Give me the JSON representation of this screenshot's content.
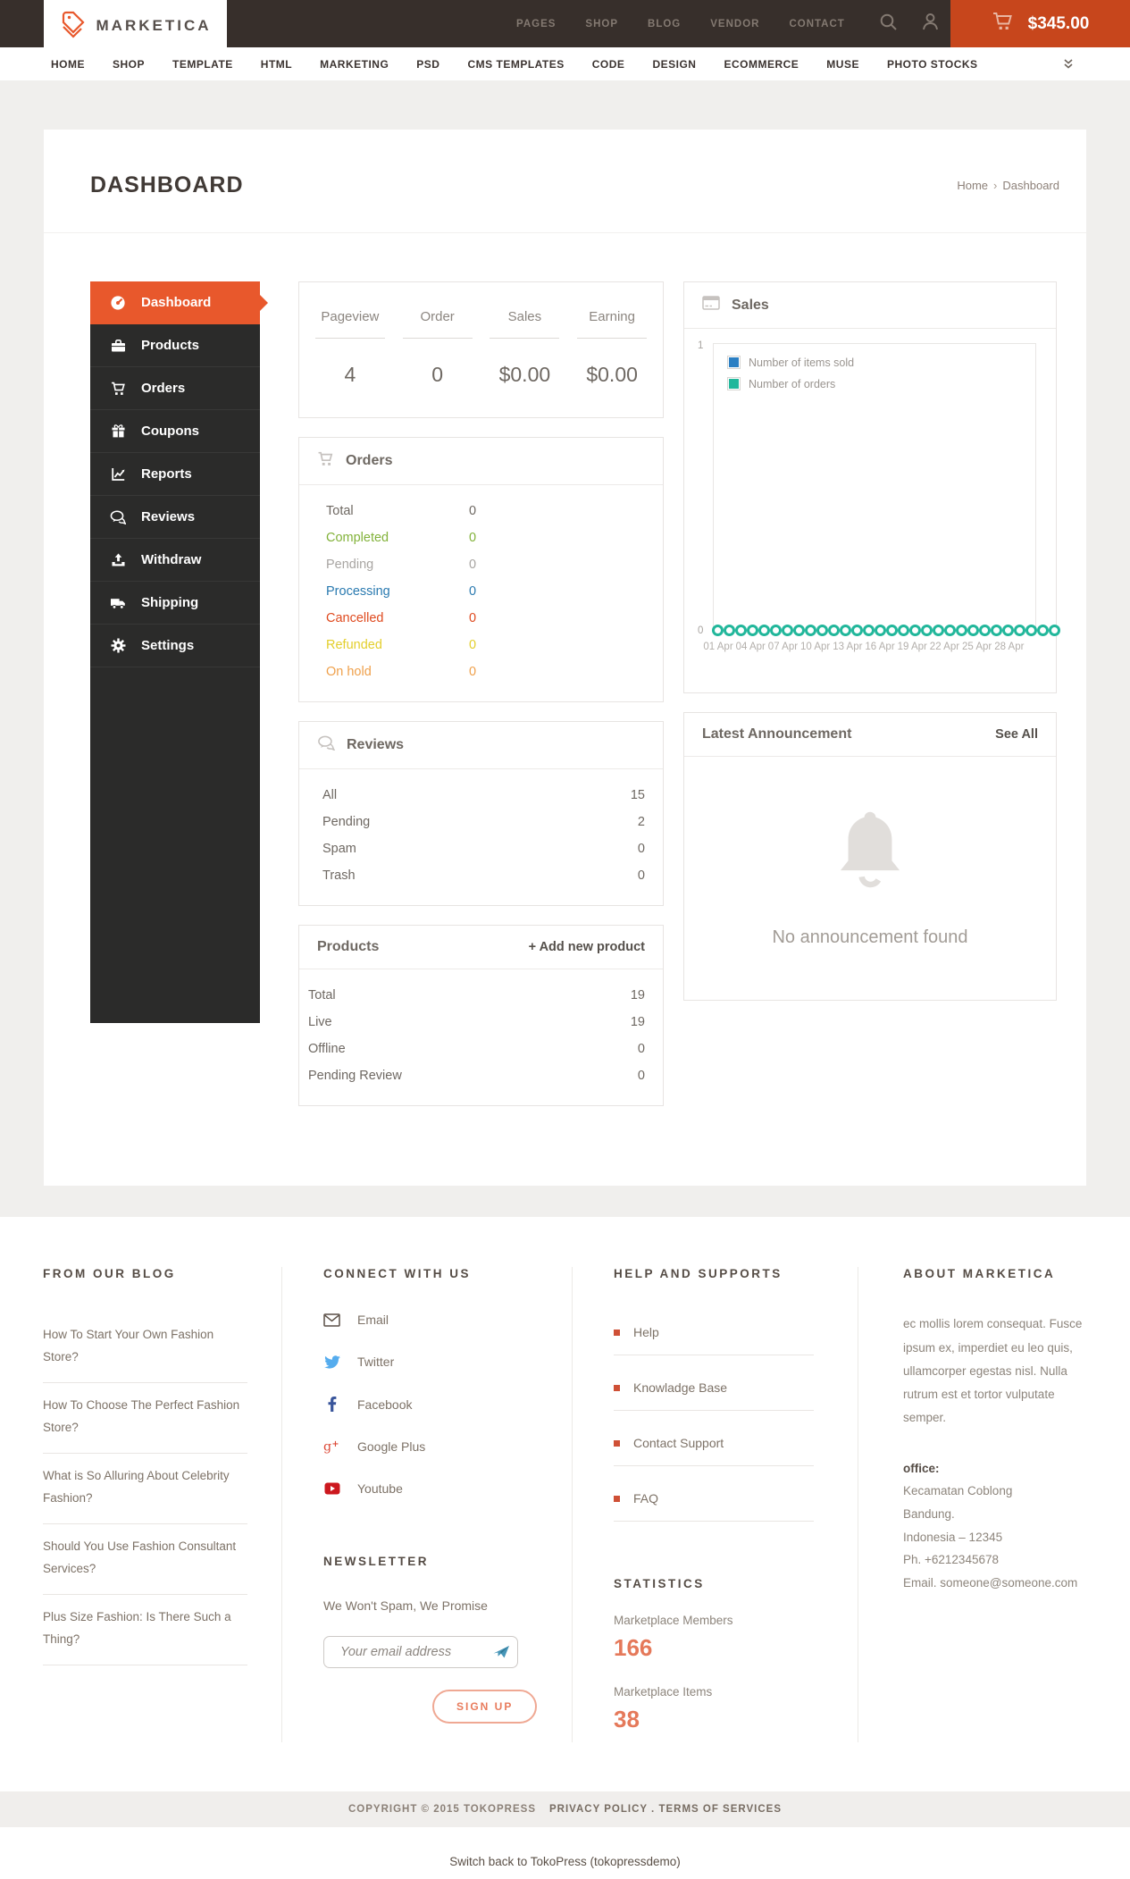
{
  "colors": {
    "accent_orange": "#e8582c",
    "cart_button": "#c7461c",
    "topbar_bg": "#372f2b",
    "sidebar_bg": "#2b2b2a",
    "chart_blue": "#2b7fc3",
    "chart_teal": "#22b79b",
    "stat_number_salmon": "#e5795a"
  },
  "topbar": {
    "brand": "MARKETICA",
    "nav": [
      "PAGES",
      "SHOP",
      "BLOG",
      "VENDOR",
      "CONTACT"
    ],
    "cart_total": "$345.00"
  },
  "mainnav": {
    "items": [
      "HOME",
      "SHOP",
      "TEMPLATE",
      "HTML",
      "MARKETING",
      "PSD",
      "CMS TEMPLATES",
      "CODE",
      "DESIGN",
      "ECOMMERCE",
      "MUSE",
      "PHOTO STOCKS"
    ]
  },
  "page": {
    "title": "DASHBOARD",
    "breadcrumb": {
      "home": "Home",
      "sep": "›",
      "current": "Dashboard"
    }
  },
  "sidebar": {
    "items": [
      {
        "label": "Dashboard",
        "icon": "dashboard-icon",
        "active": true
      },
      {
        "label": "Products",
        "icon": "briefcase-icon",
        "active": false
      },
      {
        "label": "Orders",
        "icon": "cart-icon",
        "active": false
      },
      {
        "label": "Coupons",
        "icon": "gift-icon",
        "active": false
      },
      {
        "label": "Reports",
        "icon": "chart-line-icon",
        "active": false
      },
      {
        "label": "Reviews",
        "icon": "comments-icon",
        "active": false
      },
      {
        "label": "Withdraw",
        "icon": "upload-icon",
        "active": false
      },
      {
        "label": "Shipping",
        "icon": "truck-icon",
        "active": false
      },
      {
        "label": "Settings",
        "icon": "gear-icon",
        "active": false
      }
    ]
  },
  "stats": {
    "items": [
      {
        "label": "Pageview",
        "value": "4"
      },
      {
        "label": "Order",
        "value": "0"
      },
      {
        "label": "Sales",
        "value": "$0.00"
      },
      {
        "label": "Earning",
        "value": "$0.00"
      }
    ]
  },
  "orders_panel": {
    "title": "Orders",
    "rows": [
      {
        "label": "Total",
        "value": "0",
        "color": "#6e6862"
      },
      {
        "label": "Completed",
        "value": "0",
        "color": "#82b23a"
      },
      {
        "label": "Pending",
        "value": "0",
        "color": "#a8a5a2"
      },
      {
        "label": "Processing",
        "value": "0",
        "color": "#2a7ab0"
      },
      {
        "label": "Cancelled",
        "value": "0",
        "color": "#df4a1f"
      },
      {
        "label": "Refunded",
        "value": "0",
        "color": "#e3cf2d"
      },
      {
        "label": "On hold",
        "value": "0",
        "color": "#efa04b"
      }
    ]
  },
  "reviews_panel": {
    "title": "Reviews",
    "rows": [
      {
        "label": "All",
        "value": "15"
      },
      {
        "label": "Pending",
        "value": "2"
      },
      {
        "label": "Spam",
        "value": "0"
      },
      {
        "label": "Trash",
        "value": "0"
      }
    ]
  },
  "products_panel": {
    "title": "Products",
    "action": "+ Add new product",
    "rows": [
      {
        "label": "Total",
        "value": "19"
      },
      {
        "label": "Live",
        "value": "19"
      },
      {
        "label": "Offline",
        "value": "0"
      },
      {
        "label": "Pending Review",
        "value": "0"
      }
    ]
  },
  "sales_panel": {
    "title": "Sales"
  },
  "chart_data": {
    "type": "scatter",
    "title": "Sales",
    "ylim": [
      0,
      1
    ],
    "y_ticks": {
      "top": "1",
      "bottom": "0"
    },
    "grid": false,
    "legend_position": "top-left",
    "x": [
      "01 Apr",
      "02 Apr",
      "03 Apr",
      "04 Apr",
      "05 Apr",
      "06 Apr",
      "07 Apr",
      "08 Apr",
      "09 Apr",
      "10 Apr",
      "11 Apr",
      "12 Apr",
      "13 Apr",
      "14 Apr",
      "15 Apr",
      "16 Apr",
      "17 Apr",
      "18 Apr",
      "19 Apr",
      "20 Apr",
      "21 Apr",
      "22 Apr",
      "23 Apr",
      "24 Apr",
      "25 Apr",
      "26 Apr",
      "27 Apr",
      "28 Apr",
      "29 Apr",
      "30 Apr"
    ],
    "x_tick_labels": [
      "01 Apr",
      "04 Apr",
      "07 Apr",
      "10 Apr",
      "13 Apr",
      "16 Apr",
      "19 Apr",
      "22 Apr",
      "25 Apr",
      "28 Apr"
    ],
    "series": [
      {
        "name": "Number of items sold",
        "color": "#2b7fc3",
        "values": [
          0,
          0,
          0,
          0,
          0,
          0,
          0,
          0,
          0,
          0,
          0,
          0,
          0,
          0,
          0,
          0,
          0,
          0,
          0,
          0,
          0,
          0,
          0,
          0,
          0,
          0,
          0,
          0,
          0,
          0
        ]
      },
      {
        "name": "Number of orders",
        "color": "#22b79b",
        "values": [
          0,
          0,
          0,
          0,
          0,
          0,
          0,
          0,
          0,
          0,
          0,
          0,
          0,
          0,
          0,
          0,
          0,
          0,
          0,
          0,
          0,
          0,
          0,
          0,
          0,
          0,
          0,
          0,
          0,
          0
        ]
      }
    ]
  },
  "announcement_panel": {
    "title": "Latest Announcement",
    "action": "See All",
    "empty": "No announcement found"
  },
  "footer": {
    "blog": {
      "heading": "FROM OUR BLOG",
      "posts": [
        "How To Start Your Own Fashion Store?",
        "How To Choose The Perfect Fashion Store?",
        "What is So Alluring About Celebrity Fashion?",
        "Should You Use Fashion Consultant Services?",
        "Plus Size Fashion: Is There Such a Thing?"
      ]
    },
    "connect": {
      "heading": "CONNECT WITH US",
      "links": [
        {
          "label": "Email",
          "icon": "email-icon"
        },
        {
          "label": "Twitter",
          "icon": "twitter-icon"
        },
        {
          "label": "Facebook",
          "icon": "facebook-icon"
        },
        {
          "label": "Google Plus",
          "icon": "google-plus-icon"
        },
        {
          "label": "Youtube",
          "icon": "youtube-icon"
        }
      ]
    },
    "newsletter": {
      "heading": "NEWSLETTER",
      "text": "We Won't Spam, We Promise",
      "placeholder": "Your email address",
      "button": "SIGN UP"
    },
    "help": {
      "heading": "HELP AND SUPPORTS",
      "links": [
        "Help",
        "Knowladge Base",
        "Contact Support",
        "FAQ"
      ]
    },
    "statistics": {
      "heading": "STATISTICS",
      "items": [
        {
          "label": "Marketplace Members",
          "value": "166"
        },
        {
          "label": "Marketplace Items",
          "value": "38"
        }
      ]
    },
    "about": {
      "heading": "ABOUT MARKETICA",
      "text": "ec mollis lorem consequat. Fusce ipsum ex, imperdiet eu leo quis, ullamcorper egestas nisl. Nulla rutrum est et tortor vulputate semper.",
      "office_label": "office:",
      "lines": [
        "Kecamatan Coblong",
        "Bandung.",
        "Indonesia – 12345",
        "Ph. +6212345678",
        "Email. someone@someone.com"
      ]
    }
  },
  "bottom": {
    "copyright": "COPYRIGHT © 2015 TOKOPRESS",
    "legal": "PRIVACY POLICY . TERMS OF SERVICES",
    "switchback": "Switch back to TokoPress (tokopressdemo)"
  }
}
